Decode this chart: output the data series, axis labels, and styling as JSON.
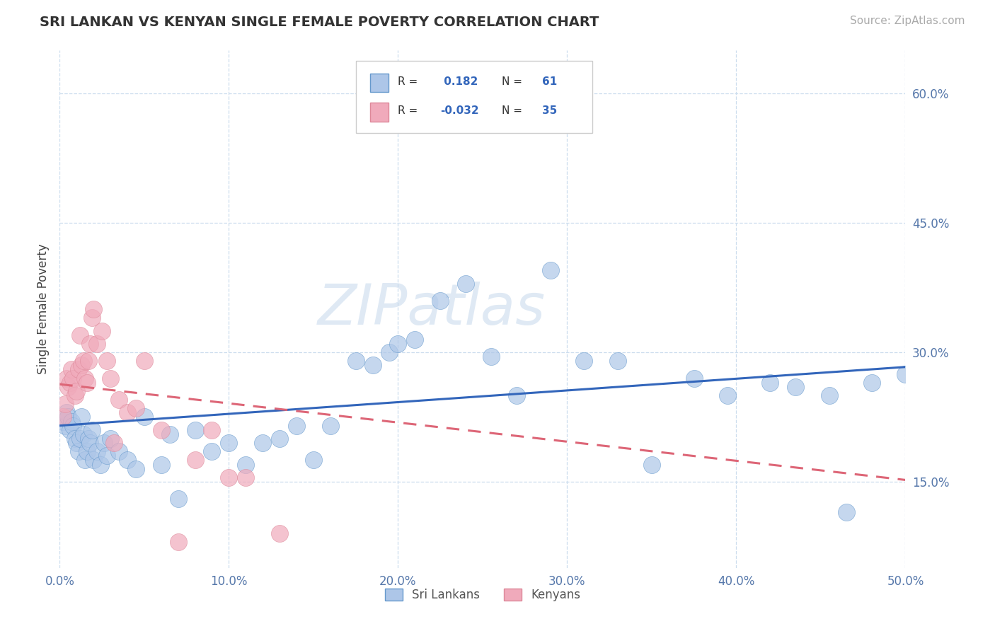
{
  "title": "SRI LANKAN VS KENYAN SINGLE FEMALE POVERTY CORRELATION CHART",
  "source_text": "Source: ZipAtlas.com",
  "ylabel": "Single Female Poverty",
  "xlim": [
    0.0,
    0.5
  ],
  "ylim": [
    0.05,
    0.65
  ],
  "xticks": [
    0.0,
    0.1,
    0.2,
    0.3,
    0.4,
    0.5
  ],
  "xtick_labels": [
    "0.0%",
    "10.0%",
    "20.0%",
    "30.0%",
    "40.0%",
    "50.0%"
  ],
  "yticks": [
    0.15,
    0.3,
    0.45,
    0.6
  ],
  "ytick_labels": [
    "15.0%",
    "30.0%",
    "45.0%",
    "60.0%"
  ],
  "sri_lankan_fill": "#adc6e8",
  "kenyan_fill": "#f0aabb",
  "sri_lankan_edge": "#6699cc",
  "kenyan_edge": "#dd8899",
  "sri_lankan_line_color": "#3366bb",
  "kenyan_line_color": "#dd6677",
  "legend_text_color": "#3366bb",
  "axis_color": "#5577aa",
  "grid_color": "#ccddee",
  "watermark": "ZIPatlas",
  "R_sri": 0.182,
  "N_sri": 61,
  "R_ken": -0.032,
  "N_ken": 35,
  "sri_trend_x0": 0.0,
  "sri_trend_y0": 0.215,
  "sri_trend_x1": 0.5,
  "sri_trend_y1": 0.283,
  "ken_trend_x0": 0.0,
  "ken_trend_y0": 0.263,
  "ken_trend_x1": 0.5,
  "ken_trend_y1": 0.152,
  "sri_x": [
    0.002,
    0.003,
    0.004,
    0.005,
    0.006,
    0.007,
    0.008,
    0.009,
    0.01,
    0.011,
    0.012,
    0.013,
    0.014,
    0.015,
    0.016,
    0.017,
    0.018,
    0.019,
    0.02,
    0.022,
    0.024,
    0.026,
    0.028,
    0.03,
    0.035,
    0.04,
    0.045,
    0.05,
    0.06,
    0.065,
    0.07,
    0.08,
    0.09,
    0.1,
    0.11,
    0.12,
    0.13,
    0.14,
    0.15,
    0.16,
    0.175,
    0.185,
    0.195,
    0.2,
    0.21,
    0.225,
    0.24,
    0.255,
    0.27,
    0.29,
    0.31,
    0.33,
    0.35,
    0.375,
    0.395,
    0.42,
    0.435,
    0.455,
    0.465,
    0.48,
    0.5
  ],
  "sri_y": [
    0.22,
    0.215,
    0.23,
    0.225,
    0.21,
    0.22,
    0.215,
    0.2,
    0.195,
    0.185,
    0.2,
    0.225,
    0.205,
    0.175,
    0.185,
    0.2,
    0.195,
    0.21,
    0.175,
    0.185,
    0.17,
    0.195,
    0.18,
    0.2,
    0.185,
    0.175,
    0.165,
    0.225,
    0.17,
    0.205,
    0.13,
    0.21,
    0.185,
    0.195,
    0.17,
    0.195,
    0.2,
    0.215,
    0.175,
    0.215,
    0.29,
    0.285,
    0.3,
    0.31,
    0.315,
    0.36,
    0.38,
    0.295,
    0.25,
    0.395,
    0.29,
    0.29,
    0.17,
    0.27,
    0.25,
    0.265,
    0.26,
    0.25,
    0.115,
    0.265,
    0.275
  ],
  "ken_x": [
    0.002,
    0.003,
    0.004,
    0.005,
    0.006,
    0.007,
    0.008,
    0.009,
    0.01,
    0.011,
    0.012,
    0.013,
    0.014,
    0.015,
    0.016,
    0.017,
    0.018,
    0.019,
    0.02,
    0.022,
    0.025,
    0.028,
    0.03,
    0.032,
    0.035,
    0.04,
    0.045,
    0.05,
    0.06,
    0.07,
    0.08,
    0.09,
    0.1,
    0.11,
    0.13
  ],
  "ken_y": [
    0.225,
    0.24,
    0.27,
    0.26,
    0.265,
    0.28,
    0.27,
    0.25,
    0.255,
    0.28,
    0.32,
    0.285,
    0.29,
    0.27,
    0.265,
    0.29,
    0.31,
    0.34,
    0.35,
    0.31,
    0.325,
    0.29,
    0.27,
    0.195,
    0.245,
    0.23,
    0.235,
    0.29,
    0.21,
    0.08,
    0.175,
    0.21,
    0.155,
    0.155,
    0.09
  ]
}
